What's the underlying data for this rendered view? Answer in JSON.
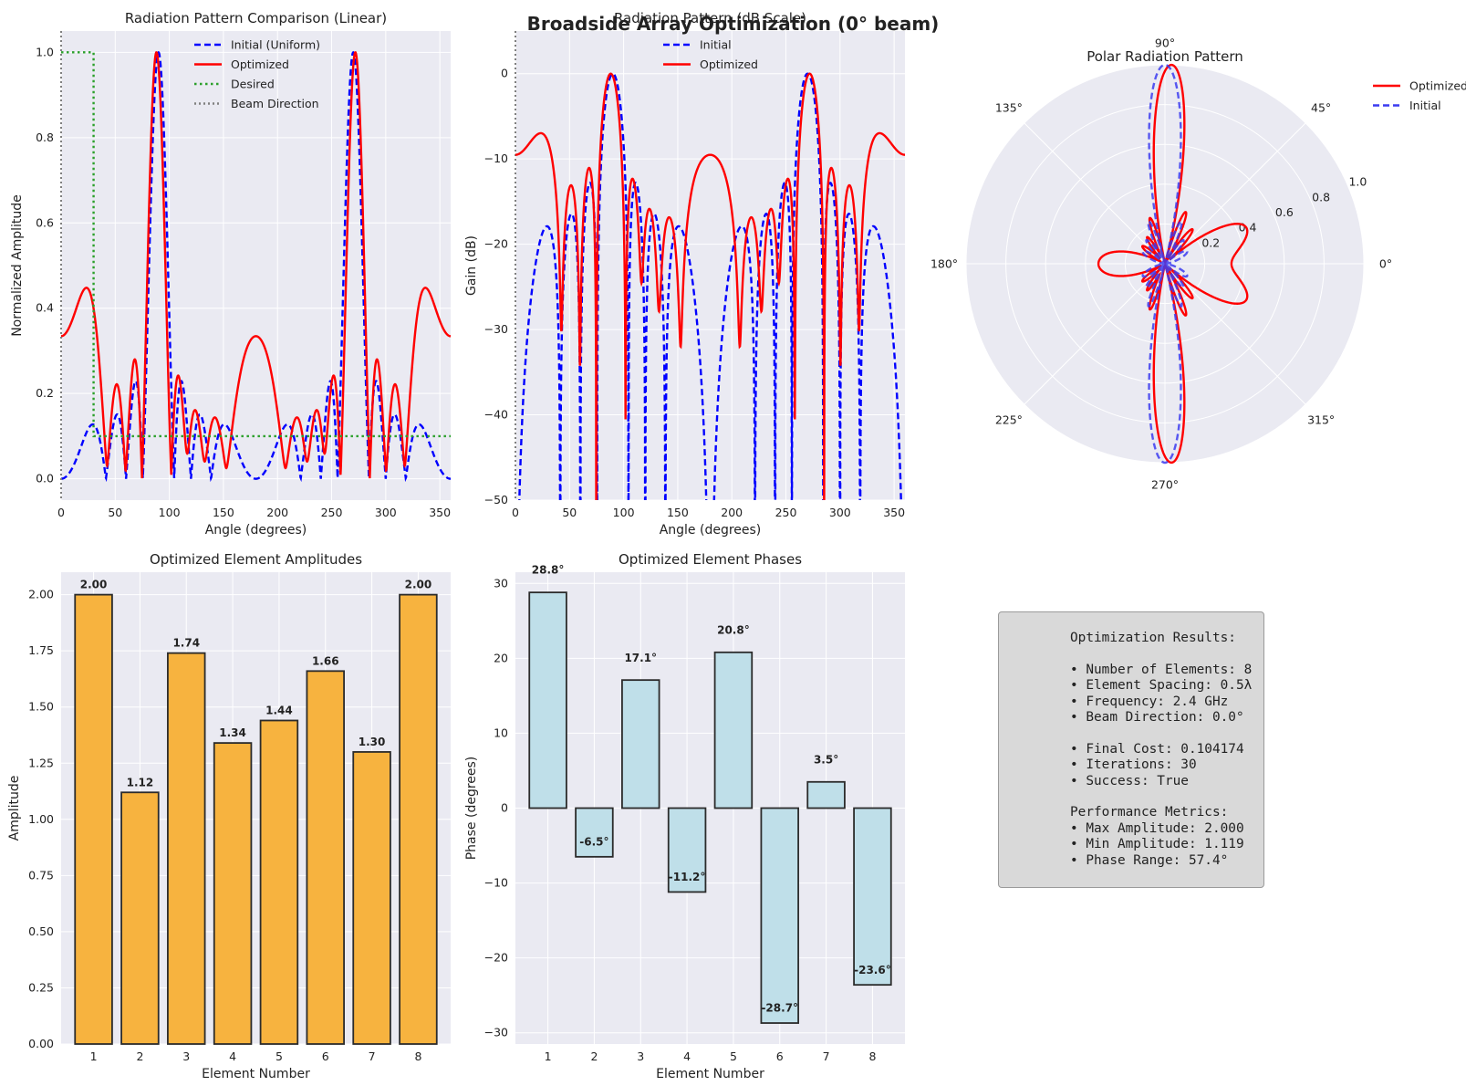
{
  "figure": {
    "suptitle": "Broadside Array Optimization (0° beam)"
  },
  "colors": {
    "initial": "#0000ff",
    "optimized": "#ff0000",
    "desired": "#2ca02c",
    "beam": "#808080",
    "amp_bar": "#f7b33f",
    "phase_bar": "#bfdfe9",
    "panel_bg": "#eaeaf2"
  },
  "chart_data": [
    {
      "id": "linear",
      "type": "line",
      "title": "Radiation Pattern Comparison (Linear)",
      "xlabel": "Angle (degrees)",
      "ylabel": "Normalized Amplitude",
      "xlim": [
        0,
        360
      ],
      "ylim": [
        -0.05,
        1.05
      ],
      "xticks": [
        0,
        50,
        100,
        150,
        200,
        250,
        300,
        350
      ],
      "yticks": [
        0.0,
        0.2,
        0.4,
        0.6,
        0.8,
        1.0
      ],
      "grid": true,
      "legend": "top-center",
      "series": [
        {
          "name": "Initial (Uniform)",
          "style": "dashed",
          "color": "#0000ff"
        },
        {
          "name": "Optimized",
          "style": "solid",
          "color": "#ff0000"
        },
        {
          "name": "Desired",
          "style": "dotted",
          "color": "#2ca02c",
          "x": [
            0,
            30,
            30,
            360
          ],
          "y": [
            1.0,
            1.0,
            0.1,
            0.1
          ]
        },
        {
          "name": "Beam Direction",
          "style": "dotted",
          "color": "#808080",
          "x": [
            0,
            0
          ]
        }
      ]
    },
    {
      "id": "db",
      "type": "line",
      "title": "Radiation Pattern (dB Scale)",
      "xlabel": "Angle (degrees)",
      "ylabel": "Gain (dB)",
      "xlim": [
        0,
        360
      ],
      "ylim": [
        -50,
        5
      ],
      "xticks": [
        0,
        50,
        100,
        150,
        200,
        250,
        300,
        350
      ],
      "yticks": [
        0,
        -10,
        -20,
        -30,
        -40,
        -50
      ],
      "grid": true,
      "legend": "top-center",
      "series": [
        {
          "name": "Initial",
          "style": "dashed",
          "color": "#0000ff"
        },
        {
          "name": "Optimized",
          "style": "solid",
          "color": "#ff0000"
        }
      ]
    },
    {
      "id": "polar",
      "type": "line",
      "projection": "polar",
      "title": "Polar Radiation Pattern",
      "rticks": [
        "0.2",
        "0.4",
        "0.6",
        "0.8",
        "1.0"
      ],
      "angle_ticks": [
        "0°",
        "45°",
        "90°",
        "135°",
        "180°",
        "225°",
        "270°",
        "315°"
      ],
      "rlim": [
        0,
        1.0
      ],
      "legend": "right-outside",
      "series": [
        {
          "name": "Optimized",
          "style": "solid",
          "color": "#ff0000"
        },
        {
          "name": "Initial",
          "style": "dashed",
          "color": "#3c3cf0"
        }
      ]
    },
    {
      "id": "amps",
      "type": "bar",
      "title": "Optimized Element Amplitudes",
      "xlabel": "Element Number",
      "ylabel": "Amplitude",
      "categories": [
        "1",
        "2",
        "3",
        "4",
        "5",
        "6",
        "7",
        "8"
      ],
      "values": [
        2.0,
        1.12,
        1.74,
        1.34,
        1.44,
        1.66,
        1.3,
        2.0
      ],
      "labels": [
        "2.00",
        "1.12",
        "1.74",
        "1.34",
        "1.44",
        "1.66",
        "1.30",
        "2.00"
      ],
      "ylim": [
        0,
        2.1
      ],
      "yticks": [
        "0.00",
        "0.25",
        "0.50",
        "0.75",
        "1.00",
        "1.25",
        "1.50",
        "1.75",
        "2.00"
      ],
      "grid": true
    },
    {
      "id": "phases",
      "type": "bar",
      "title": "Optimized Element Phases",
      "xlabel": "Element Number",
      "ylabel": "Phase (degrees)",
      "categories": [
        "1",
        "2",
        "3",
        "4",
        "5",
        "6",
        "7",
        "8"
      ],
      "values": [
        28.8,
        -6.5,
        17.1,
        -11.2,
        20.8,
        -28.7,
        3.5,
        -23.6
      ],
      "labels": [
        "28.8°",
        "-6.5°",
        "17.1°",
        "-11.2°",
        "20.8°",
        "-28.7°",
        "3.5°",
        "-23.6°"
      ],
      "ylim": [
        -31.5,
        31.5
      ],
      "yticks": [
        30,
        20,
        10,
        0,
        -10,
        -20,
        -30
      ],
      "grid": true
    }
  ],
  "results": {
    "lines": [
      "Optimization Results:",
      "",
      "• Number of Elements: 8",
      "• Element Spacing: 0.5λ",
      "• Frequency: 2.4 GHz",
      "• Beam Direction: 0.0°",
      "",
      "• Final Cost: 0.104174",
      "• Iterations: 30",
      "• Success: True",
      "",
      "Performance Metrics:",
      "• Max Amplitude: 2.000",
      "• Min Amplitude: 1.119",
      "• Phase Range: 57.4°"
    ]
  }
}
